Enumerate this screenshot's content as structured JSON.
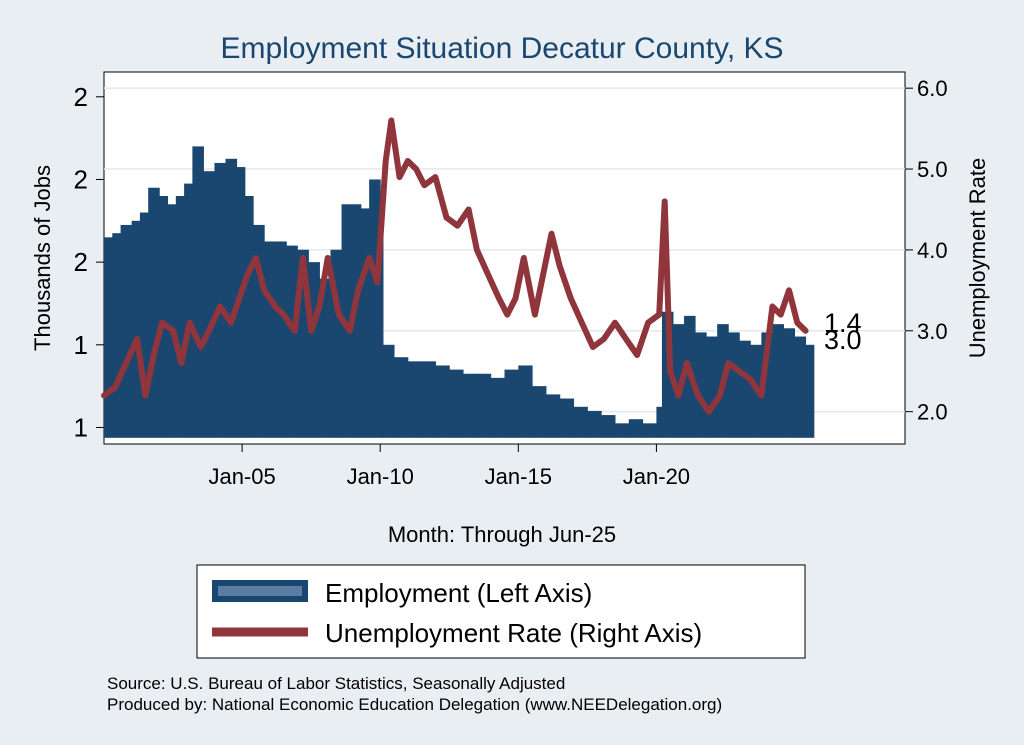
{
  "chart_data": {
    "type": "bar+line",
    "title": "Employment Situation Decatur  County, KS",
    "xlabel": "Month: Through Jun-25",
    "ylabel_left": "Thousands of Jobs",
    "ylabel_right": "Unemployment Rate",
    "x_ticks": [
      "Jan-05",
      "Jan-10",
      "Jan-15",
      "Jan-20"
    ],
    "x_tick_years": [
      2005,
      2010,
      2015,
      2020
    ],
    "x_range": [
      2000.0,
      2029.0
    ],
    "left_ticks": [
      {
        "value": 1.2,
        "label": "1"
      },
      {
        "value": 1.4,
        "label": "1"
      },
      {
        "value": 1.6,
        "label": "2"
      },
      {
        "value": 1.8,
        "label": "2"
      },
      {
        "value": 2.0,
        "label": "2"
      }
    ],
    "left_range": [
      1.16,
      2.06
    ],
    "right_ticks": [
      {
        "value": 2.0,
        "label": "2.0"
      },
      {
        "value": 3.0,
        "label": "3.0"
      },
      {
        "value": 4.0,
        "label": "4.0"
      },
      {
        "value": 5.0,
        "label": "5.0"
      },
      {
        "value": 6.0,
        "label": "6.0"
      }
    ],
    "right_range": [
      1.6,
      6.2
    ],
    "end_labels": {
      "employment": "1.4",
      "unemployment": "3.0"
    },
    "series": [
      {
        "name": "Employment (Left Axis)",
        "axis": "left",
        "color": "#1a476f",
        "points": [
          [
            2000.0,
            1.66
          ],
          [
            2000.3,
            1.67
          ],
          [
            2000.6,
            1.69
          ],
          [
            2001.0,
            1.7
          ],
          [
            2001.3,
            1.72
          ],
          [
            2001.6,
            1.78
          ],
          [
            2002.0,
            1.76
          ],
          [
            2002.3,
            1.74
          ],
          [
            2002.6,
            1.76
          ],
          [
            2002.9,
            1.79
          ],
          [
            2003.2,
            1.88
          ],
          [
            2003.6,
            1.82
          ],
          [
            2004.0,
            1.84
          ],
          [
            2004.4,
            1.85
          ],
          [
            2004.8,
            1.83
          ],
          [
            2005.1,
            1.76
          ],
          [
            2005.4,
            1.69
          ],
          [
            2005.8,
            1.65
          ],
          [
            2006.2,
            1.65
          ],
          [
            2006.6,
            1.64
          ],
          [
            2007.0,
            1.63
          ],
          [
            2007.4,
            1.6
          ],
          [
            2007.8,
            1.56
          ],
          [
            2008.2,
            1.63
          ],
          [
            2008.6,
            1.74
          ],
          [
            2009.0,
            1.74
          ],
          [
            2009.3,
            1.73
          ],
          [
            2009.6,
            1.8
          ],
          [
            2010.0,
            1.76
          ],
          [
            2010.1,
            1.4
          ],
          [
            2010.5,
            1.37
          ],
          [
            2011.0,
            1.36
          ],
          [
            2011.5,
            1.36
          ],
          [
            2012.0,
            1.35
          ],
          [
            2012.5,
            1.34
          ],
          [
            2013.0,
            1.33
          ],
          [
            2013.5,
            1.33
          ],
          [
            2014.0,
            1.32
          ],
          [
            2014.5,
            1.34
          ],
          [
            2015.0,
            1.35
          ],
          [
            2015.5,
            1.3
          ],
          [
            2016.0,
            1.28
          ],
          [
            2016.5,
            1.27
          ],
          [
            2017.0,
            1.25
          ],
          [
            2017.5,
            1.24
          ],
          [
            2018.0,
            1.23
          ],
          [
            2018.5,
            1.21
          ],
          [
            2019.0,
            1.22
          ],
          [
            2019.5,
            1.21
          ],
          [
            2020.0,
            1.25
          ],
          [
            2020.2,
            1.48
          ],
          [
            2020.6,
            1.45
          ],
          [
            2021.0,
            1.47
          ],
          [
            2021.4,
            1.43
          ],
          [
            2021.8,
            1.42
          ],
          [
            2022.2,
            1.45
          ],
          [
            2022.6,
            1.43
          ],
          [
            2023.0,
            1.41
          ],
          [
            2023.4,
            1.4
          ],
          [
            2023.8,
            1.43
          ],
          [
            2024.2,
            1.45
          ],
          [
            2024.6,
            1.44
          ],
          [
            2025.0,
            1.42
          ],
          [
            2025.4,
            1.4
          ]
        ]
      },
      {
        "name": "Unemployment Rate (Right Axis)",
        "axis": "right",
        "color": "#90353b",
        "points": [
          [
            2000.0,
            2.2
          ],
          [
            2000.4,
            2.3
          ],
          [
            2000.8,
            2.6
          ],
          [
            2001.2,
            2.9
          ],
          [
            2001.5,
            2.2
          ],
          [
            2001.8,
            2.7
          ],
          [
            2002.1,
            3.1
          ],
          [
            2002.5,
            3.0
          ],
          [
            2002.8,
            2.6
          ],
          [
            2003.1,
            3.1
          ],
          [
            2003.5,
            2.8
          ],
          [
            2003.8,
            3.0
          ],
          [
            2004.2,
            3.3
          ],
          [
            2004.6,
            3.1
          ],
          [
            2004.9,
            3.4
          ],
          [
            2005.2,
            3.7
          ],
          [
            2005.5,
            3.9
          ],
          [
            2005.8,
            3.5
          ],
          [
            2006.2,
            3.3
          ],
          [
            2006.5,
            3.2
          ],
          [
            2006.9,
            3.0
          ],
          [
            2007.2,
            3.9
          ],
          [
            2007.5,
            3.0
          ],
          [
            2007.8,
            3.3
          ],
          [
            2008.1,
            3.9
          ],
          [
            2008.5,
            3.2
          ],
          [
            2008.9,
            3.0
          ],
          [
            2009.2,
            3.5
          ],
          [
            2009.6,
            3.9
          ],
          [
            2009.9,
            3.6
          ],
          [
            2010.2,
            5.1
          ],
          [
            2010.4,
            5.6
          ],
          [
            2010.7,
            4.9
          ],
          [
            2011.0,
            5.1
          ],
          [
            2011.3,
            5.0
          ],
          [
            2011.6,
            4.8
          ],
          [
            2012.0,
            4.9
          ],
          [
            2012.4,
            4.4
          ],
          [
            2012.8,
            4.3
          ],
          [
            2013.2,
            4.5
          ],
          [
            2013.5,
            4.0
          ],
          [
            2013.9,
            3.7
          ],
          [
            2014.3,
            3.4
          ],
          [
            2014.6,
            3.2
          ],
          [
            2014.9,
            3.4
          ],
          [
            2015.2,
            3.9
          ],
          [
            2015.6,
            3.2
          ],
          [
            2015.9,
            3.7
          ],
          [
            2016.2,
            4.2
          ],
          [
            2016.5,
            3.8
          ],
          [
            2016.9,
            3.4
          ],
          [
            2017.3,
            3.1
          ],
          [
            2017.7,
            2.8
          ],
          [
            2018.1,
            2.9
          ],
          [
            2018.5,
            3.1
          ],
          [
            2018.9,
            2.9
          ],
          [
            2019.3,
            2.7
          ],
          [
            2019.7,
            3.1
          ],
          [
            2020.1,
            3.2
          ],
          [
            2020.3,
            4.6
          ],
          [
            2020.5,
            2.5
          ],
          [
            2020.8,
            2.2
          ],
          [
            2021.1,
            2.6
          ],
          [
            2021.5,
            2.2
          ],
          [
            2021.9,
            2.0
          ],
          [
            2022.3,
            2.2
          ],
          [
            2022.6,
            2.6
          ],
          [
            2023.0,
            2.5
          ],
          [
            2023.4,
            2.4
          ],
          [
            2023.8,
            2.2
          ],
          [
            2024.2,
            3.3
          ],
          [
            2024.5,
            3.2
          ],
          [
            2024.8,
            3.5
          ],
          [
            2025.1,
            3.1
          ],
          [
            2025.4,
            3.0
          ]
        ]
      }
    ],
    "legend": {
      "position": "bottom"
    },
    "grid": true
  },
  "source_line": "Source: U.S. Bureau of Labor Statistics, Seasonally Adjusted",
  "produced_line": "Produced by: National Economic Education Delegation (www.NEEDelegation.org)"
}
